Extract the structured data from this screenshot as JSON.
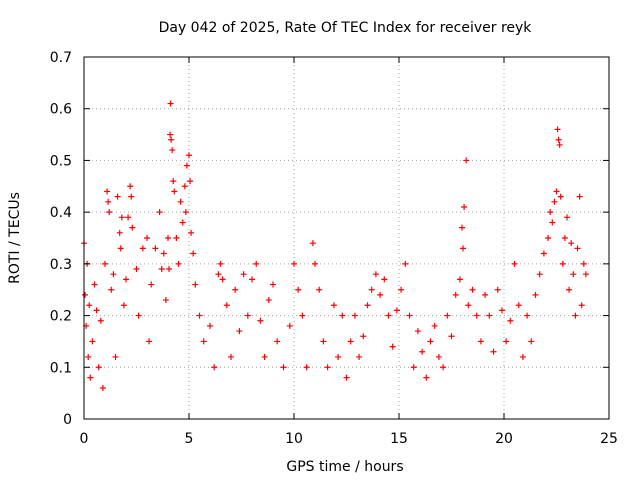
{
  "chart_data": {
    "type": "scatter",
    "title": "Day 042 of 2025, Rate Of TEC Index for receiver reyk",
    "xlabel": "GPS time / hours",
    "ylabel": "ROTI / TECUs",
    "xlim": [
      0,
      25
    ],
    "ylim": [
      0,
      0.7
    ],
    "x_ticks": [
      0,
      5,
      10,
      15,
      20,
      25
    ],
    "x_tick_labels": [
      "0",
      "5",
      "10",
      "15",
      "20",
      "25"
    ],
    "y_ticks": [
      0,
      0.1,
      0.2,
      0.3,
      0.4,
      0.5,
      0.6,
      0.7
    ],
    "y_tick_labels": [
      "0",
      "0.1",
      "0.2",
      "0.3",
      "0.4",
      "0.5",
      "0.6",
      "0.7"
    ],
    "grid": true,
    "marker": "+",
    "color": "#ff0000",
    "series": [
      {
        "name": "ROTI",
        "points": [
          [
            0.0,
            0.34
          ],
          [
            0.05,
            0.24
          ],
          [
            0.1,
            0.18
          ],
          [
            0.15,
            0.3
          ],
          [
            0.2,
            0.12
          ],
          [
            0.25,
            0.22
          ],
          [
            0.3,
            0.08
          ],
          [
            0.4,
            0.15
          ],
          [
            0.5,
            0.26
          ],
          [
            0.6,
            0.21
          ],
          [
            0.7,
            0.1
          ],
          [
            0.8,
            0.19
          ],
          [
            0.9,
            0.06
          ],
          [
            1.0,
            0.3
          ],
          [
            1.1,
            0.44
          ],
          [
            1.15,
            0.42
          ],
          [
            1.2,
            0.4
          ],
          [
            1.3,
            0.25
          ],
          [
            1.4,
            0.28
          ],
          [
            1.5,
            0.12
          ],
          [
            1.6,
            0.43
          ],
          [
            1.7,
            0.36
          ],
          [
            1.75,
            0.33
          ],
          [
            1.8,
            0.39
          ],
          [
            1.9,
            0.22
          ],
          [
            2.0,
            0.27
          ],
          [
            2.1,
            0.39
          ],
          [
            2.2,
            0.45
          ],
          [
            2.25,
            0.43
          ],
          [
            2.3,
            0.37
          ],
          [
            2.5,
            0.29
          ],
          [
            2.6,
            0.2
          ],
          [
            2.8,
            0.33
          ],
          [
            3.0,
            0.35
          ],
          [
            3.1,
            0.15
          ],
          [
            3.2,
            0.26
          ],
          [
            3.4,
            0.33
          ],
          [
            3.6,
            0.4
          ],
          [
            3.7,
            0.29
          ],
          [
            3.8,
            0.32
          ],
          [
            3.9,
            0.23
          ],
          [
            4.0,
            0.35
          ],
          [
            4.05,
            0.29
          ],
          [
            4.1,
            0.55
          ],
          [
            4.12,
            0.61
          ],
          [
            4.15,
            0.54
          ],
          [
            4.2,
            0.52
          ],
          [
            4.25,
            0.46
          ],
          [
            4.3,
            0.44
          ],
          [
            4.4,
            0.35
          ],
          [
            4.5,
            0.3
          ],
          [
            4.6,
            0.42
          ],
          [
            4.7,
            0.38
          ],
          [
            4.8,
            0.45
          ],
          [
            4.85,
            0.4
          ],
          [
            4.9,
            0.49
          ],
          [
            5.0,
            0.51
          ],
          [
            5.05,
            0.46
          ],
          [
            5.1,
            0.36
          ],
          [
            5.2,
            0.32
          ],
          [
            5.3,
            0.26
          ],
          [
            5.5,
            0.2
          ],
          [
            5.7,
            0.15
          ],
          [
            6.0,
            0.18
          ],
          [
            6.2,
            0.1
          ],
          [
            6.4,
            0.28
          ],
          [
            6.5,
            0.3
          ],
          [
            6.6,
            0.27
          ],
          [
            6.8,
            0.22
          ],
          [
            7.0,
            0.12
          ],
          [
            7.2,
            0.25
          ],
          [
            7.4,
            0.17
          ],
          [
            7.6,
            0.28
          ],
          [
            7.8,
            0.2
          ],
          [
            8.0,
            0.27
          ],
          [
            8.2,
            0.3
          ],
          [
            8.4,
            0.19
          ],
          [
            8.6,
            0.12
          ],
          [
            8.8,
            0.23
          ],
          [
            9.0,
            0.26
          ],
          [
            9.2,
            0.15
          ],
          [
            9.5,
            0.1
          ],
          [
            9.8,
            0.18
          ],
          [
            10.0,
            0.3
          ],
          [
            10.2,
            0.25
          ],
          [
            10.4,
            0.2
          ],
          [
            10.6,
            0.1
          ],
          [
            10.9,
            0.34
          ],
          [
            11.0,
            0.3
          ],
          [
            11.2,
            0.25
          ],
          [
            11.4,
            0.15
          ],
          [
            11.6,
            0.1
          ],
          [
            11.9,
            0.22
          ],
          [
            12.1,
            0.12
          ],
          [
            12.3,
            0.2
          ],
          [
            12.5,
            0.08
          ],
          [
            12.7,
            0.15
          ],
          [
            12.9,
            0.2
          ],
          [
            13.1,
            0.12
          ],
          [
            13.3,
            0.16
          ],
          [
            13.5,
            0.22
          ],
          [
            13.7,
            0.25
          ],
          [
            13.9,
            0.28
          ],
          [
            14.1,
            0.24
          ],
          [
            14.3,
            0.27
          ],
          [
            14.5,
            0.2
          ],
          [
            14.7,
            0.14
          ],
          [
            14.9,
            0.21
          ],
          [
            15.1,
            0.25
          ],
          [
            15.3,
            0.3
          ],
          [
            15.5,
            0.2
          ],
          [
            15.7,
            0.1
          ],
          [
            15.9,
            0.17
          ],
          [
            16.1,
            0.13
          ],
          [
            16.3,
            0.08
          ],
          [
            16.5,
            0.15
          ],
          [
            16.7,
            0.18
          ],
          [
            16.9,
            0.12
          ],
          [
            17.1,
            0.1
          ],
          [
            17.3,
            0.2
          ],
          [
            17.5,
            0.16
          ],
          [
            17.7,
            0.24
          ],
          [
            17.9,
            0.27
          ],
          [
            18.0,
            0.37
          ],
          [
            18.05,
            0.33
          ],
          [
            18.1,
            0.41
          ],
          [
            18.2,
            0.5
          ],
          [
            18.3,
            0.22
          ],
          [
            18.5,
            0.25
          ],
          [
            18.7,
            0.2
          ],
          [
            18.9,
            0.15
          ],
          [
            19.1,
            0.24
          ],
          [
            19.3,
            0.2
          ],
          [
            19.5,
            0.13
          ],
          [
            19.7,
            0.25
          ],
          [
            19.9,
            0.21
          ],
          [
            20.1,
            0.15
          ],
          [
            20.3,
            0.19
          ],
          [
            20.5,
            0.3
          ],
          [
            20.7,
            0.22
          ],
          [
            20.9,
            0.12
          ],
          [
            21.1,
            0.2
          ],
          [
            21.3,
            0.15
          ],
          [
            21.5,
            0.24
          ],
          [
            21.7,
            0.28
          ],
          [
            21.9,
            0.32
          ],
          [
            22.1,
            0.35
          ],
          [
            22.2,
            0.4
          ],
          [
            22.3,
            0.38
          ],
          [
            22.4,
            0.42
          ],
          [
            22.5,
            0.44
          ],
          [
            22.55,
            0.56
          ],
          [
            22.6,
            0.54
          ],
          [
            22.65,
            0.53
          ],
          [
            22.7,
            0.43
          ],
          [
            22.8,
            0.3
          ],
          [
            22.9,
            0.35
          ],
          [
            23.0,
            0.39
          ],
          [
            23.1,
            0.25
          ],
          [
            23.2,
            0.34
          ],
          [
            23.3,
            0.28
          ],
          [
            23.4,
            0.2
          ],
          [
            23.5,
            0.33
          ],
          [
            23.6,
            0.43
          ],
          [
            23.7,
            0.22
          ],
          [
            23.8,
            0.3
          ],
          [
            23.9,
            0.28
          ]
        ]
      }
    ]
  }
}
